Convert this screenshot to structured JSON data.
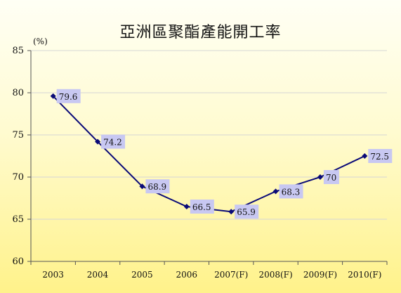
{
  "chart_data": {
    "type": "line",
    "title": "亞洲區聚酯產能開工率",
    "unit": "(%)",
    "categories": [
      "2003",
      "2004",
      "2005",
      "2006",
      "2007(F)",
      "2008(F)",
      "2009(F)",
      "2010(F)"
    ],
    "series": [
      {
        "values": [
          79.6,
          74.2,
          68.9,
          66.5,
          65.9,
          68.3,
          70,
          72.5
        ]
      }
    ],
    "data_labels": [
      "79.6",
      "74.2",
      "68.9",
      "66.5",
      "65.9",
      "68.3",
      "70",
      "72.5"
    ],
    "ylim": [
      60,
      85
    ],
    "yticks": [
      "60",
      "65",
      "70",
      "75",
      "80",
      "85"
    ],
    "grid": true,
    "colors": {
      "line": "#0a0a78",
      "label_bg": "#c8c8f2",
      "grid": "#d6d6d6"
    }
  }
}
